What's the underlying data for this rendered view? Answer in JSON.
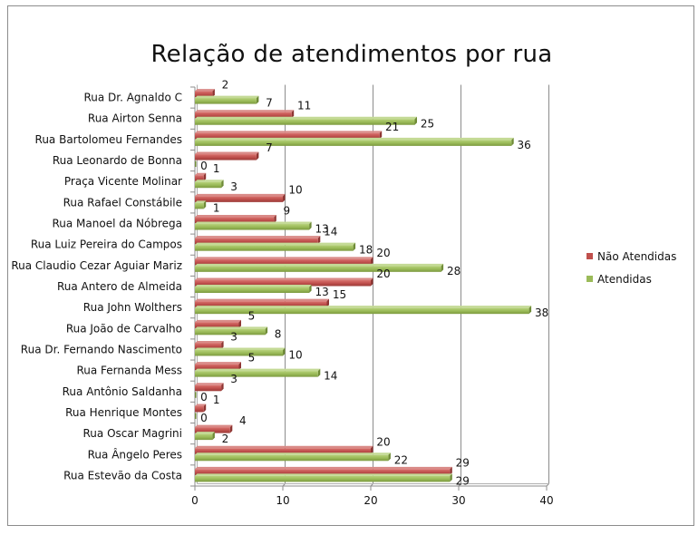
{
  "chart_data": {
    "type": "bar",
    "orientation": "horizontal",
    "title": "Relação de atendimentos  por rua",
    "categories": [
      "Rua Dr. Agnaldo C",
      "Rua Airton Senna",
      "Rua Bartolomeu Fernandes",
      "Rua Leonardo de Bonna",
      "Praça Vicente Molinar",
      "Rua Rafael Constábile",
      "Rua Manoel da Nóbrega",
      "Rua Luiz Pereira do Campos",
      "Rua Claudio Cezar Aguiar Mariz",
      "Rua Antero de Almeida",
      "Rua John Wolthers",
      "Rua João de Carvalho",
      "Rua Dr. Fernando Nascimento",
      "Rua Fernanda Mess",
      "Rua Antônio Saldanha",
      "Rua Henrique Montes",
      "Rua Oscar Magrini",
      "Rua Ângelo Peres",
      "Rua Estevão da Costa"
    ],
    "series": [
      {
        "name": "Não Atendidas",
        "color": "#c0504d",
        "values": [
          2,
          11,
          21,
          7,
          1,
          10,
          9,
          14,
          20,
          20,
          15,
          5,
          3,
          5,
          3,
          1,
          4,
          20,
          29
        ]
      },
      {
        "name": "Atendidas",
        "color": "#9bbb59",
        "values": [
          7,
          25,
          36,
          0,
          3,
          1,
          13,
          18,
          28,
          13,
          38,
          8,
          10,
          14,
          0,
          0,
          2,
          22,
          29
        ]
      }
    ],
    "xlim": [
      0,
      40
    ],
    "xticks": [
      "0",
      "10",
      "20",
      "30",
      "40"
    ],
    "grid": true,
    "legend_position": "right"
  }
}
